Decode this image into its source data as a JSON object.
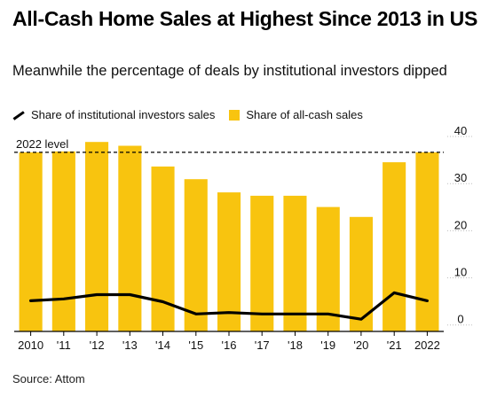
{
  "header": {
    "title": "All-Cash Home Sales at Highest Since 2013 in US",
    "subtitle": "Meanwhile the percentage of deals by institutional investors dipped"
  },
  "legend": {
    "items": [
      {
        "label": "Share of institutional investors sales",
        "kind": "line",
        "color": "#000000"
      },
      {
        "label": "Share of all-cash sales",
        "kind": "bar",
        "color": "#F8C40F"
      }
    ]
  },
  "footer": {
    "source": "Source: Attom"
  },
  "chart_data": {
    "type": "bar",
    "categories": [
      "2010",
      "'11",
      "'12",
      "'13",
      "'14",
      "'15",
      "'16",
      "'17",
      "'18",
      "'19",
      "'20",
      "'21",
      "2022"
    ],
    "series": [
      {
        "name": "Share of all-cash sales",
        "type": "bar",
        "color": "#F8C40F",
        "values": [
          35.5,
          35.7,
          37.7,
          36.9,
          32.5,
          29.8,
          27.0,
          26.3,
          26.3,
          23.9,
          21.8,
          33.4,
          35.5
        ]
      },
      {
        "name": "Share of institutional investors sales",
        "type": "line",
        "color": "#000000",
        "values": [
          4.0,
          4.4,
          5.3,
          5.3,
          3.8,
          1.2,
          1.5,
          1.2,
          1.2,
          1.2,
          0.1,
          5.7,
          4.0
        ]
      }
    ],
    "reference_line": {
      "label": "2022 level",
      "value": 35.5,
      "style": "dashed"
    },
    "y_ticks": [
      "40",
      "30",
      "20",
      "10",
      "0"
    ],
    "ylim": [
      -2.5,
      40
    ],
    "y_axis_position": "right",
    "grid": false,
    "legend_position": "top-left"
  }
}
